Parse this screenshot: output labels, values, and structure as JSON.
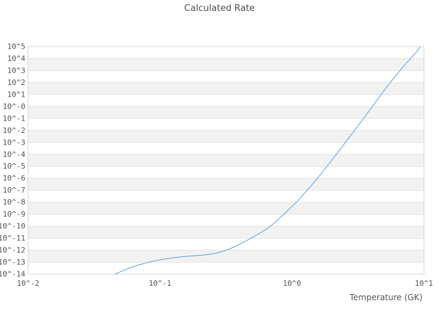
{
  "title": "Calculated Rate",
  "chart_data": {
    "type": "line",
    "title": "Calculated Rate",
    "xlabel": "Temperature (GK)",
    "ylabel": "",
    "x_scale": "log",
    "y_scale": "log",
    "xlim_log": [
      -2,
      1
    ],
    "ylim_log": [
      -14,
      5
    ],
    "x_tick_labels": [
      "10^-2",
      "10^-1",
      "10^0",
      "10^1"
    ],
    "x_tick_log_positions": [
      -2,
      -1,
      0,
      1
    ],
    "y_tick_labels": [
      "10^5",
      "10^4",
      "10^3",
      "10^2",
      "10^1",
      "10^-0",
      "10^-1",
      "10^-2",
      "10^-3",
      "10^-4",
      "10^-5",
      "10^-6",
      "10^-7",
      "10^-8",
      "10^-9",
      "10^-10",
      "10^-11",
      "10^-12",
      "10^-13",
      "10^-14"
    ],
    "y_tick_log_positions": [
      5,
      4,
      3,
      2,
      1,
      0,
      -1,
      -2,
      -3,
      -4,
      -5,
      -6,
      -7,
      -8,
      -9,
      -10,
      -11,
      -12,
      -13,
      -14
    ],
    "grid": "horizontal-only",
    "legend": "none",
    "background_bands": "alternating light gray rows between decades",
    "series": [
      {
        "name": "calculated-rate",
        "color": "#5d9cd9",
        "points_log10": [
          [
            -1.34,
            -14.0
          ],
          [
            -1.29,
            -13.75
          ],
          [
            -1.23,
            -13.48
          ],
          [
            -1.16,
            -13.22
          ],
          [
            -1.08,
            -12.98
          ],
          [
            -1.0,
            -12.8
          ],
          [
            -0.92,
            -12.66
          ],
          [
            -0.84,
            -12.56
          ],
          [
            -0.76,
            -12.48
          ],
          [
            -0.68,
            -12.41
          ],
          [
            -0.61,
            -12.32
          ],
          [
            -0.55,
            -12.18
          ],
          [
            -0.49,
            -11.97
          ],
          [
            -0.43,
            -11.68
          ],
          [
            -0.37,
            -11.35
          ],
          [
            -0.31,
            -11.0
          ],
          [
            -0.25,
            -10.62
          ],
          [
            -0.19,
            -10.22
          ],
          [
            -0.13,
            -9.7
          ],
          [
            -0.07,
            -9.1
          ],
          [
            -0.01,
            -8.45
          ],
          [
            0.05,
            -7.8
          ],
          [
            0.11,
            -7.05
          ],
          [
            0.17,
            -6.3
          ],
          [
            0.23,
            -5.5
          ],
          [
            0.29,
            -4.65
          ],
          [
            0.35,
            -3.8
          ],
          [
            0.41,
            -2.92
          ],
          [
            0.47,
            -2.05
          ],
          [
            0.53,
            -1.18
          ],
          [
            0.59,
            -0.3
          ],
          [
            0.65,
            0.62
          ],
          [
            0.71,
            1.5
          ],
          [
            0.77,
            2.35
          ],
          [
            0.83,
            3.15
          ],
          [
            0.89,
            3.9
          ],
          [
            0.94,
            4.5
          ],
          [
            0.97,
            4.95
          ]
        ]
      }
    ],
    "colors": {
      "line": "#5d9cd9",
      "band_fill": "#f2f2f2",
      "gridline": "#e2e2e2",
      "plot_border": "#d5d5d5",
      "text": "#555555",
      "title_text": "#4d4d4d",
      "background": "#ffffff"
    }
  }
}
